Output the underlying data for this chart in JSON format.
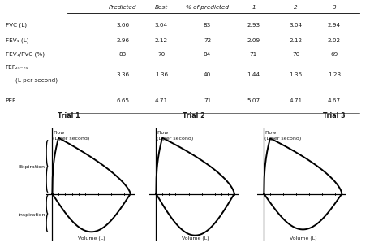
{
  "table": {
    "headers": [
      "Predicted",
      "Best",
      "% of predicted",
      "1",
      "2",
      "3"
    ],
    "rows": [
      [
        "FVC (L)",
        "3.66",
        "3.04",
        "83",
        "2.93",
        "3.04",
        "2.94"
      ],
      [
        "FEV₁ (L)",
        "2.96",
        "2.12",
        "72",
        "2.09",
        "2.12",
        "2.02"
      ],
      [
        "FEV₁/FVC (%)",
        "83",
        "70",
        "84",
        "71",
        "70",
        "69"
      ],
      [
        "FEF₂₅₋₇₅\n(L per second)",
        "3.36",
        "1.36",
        "40",
        "1.44",
        "1.36",
        "1.23"
      ],
      [
        "PEF",
        "6.65",
        "4.71",
        "71",
        "5.07",
        "4.71",
        "4.67"
      ]
    ]
  },
  "trial_labels": [
    "Trial 1",
    "Trial 2",
    "Trial 3"
  ],
  "flow_label": "Flow\n(L per second)",
  "volume_label": "Volume (L)",
  "expiration_label": "Expiration",
  "inspiration_label": "nspiration",
  "bg_color": "#ffffff",
  "text_color": "#1a1a1a",
  "line_color": "#000000"
}
